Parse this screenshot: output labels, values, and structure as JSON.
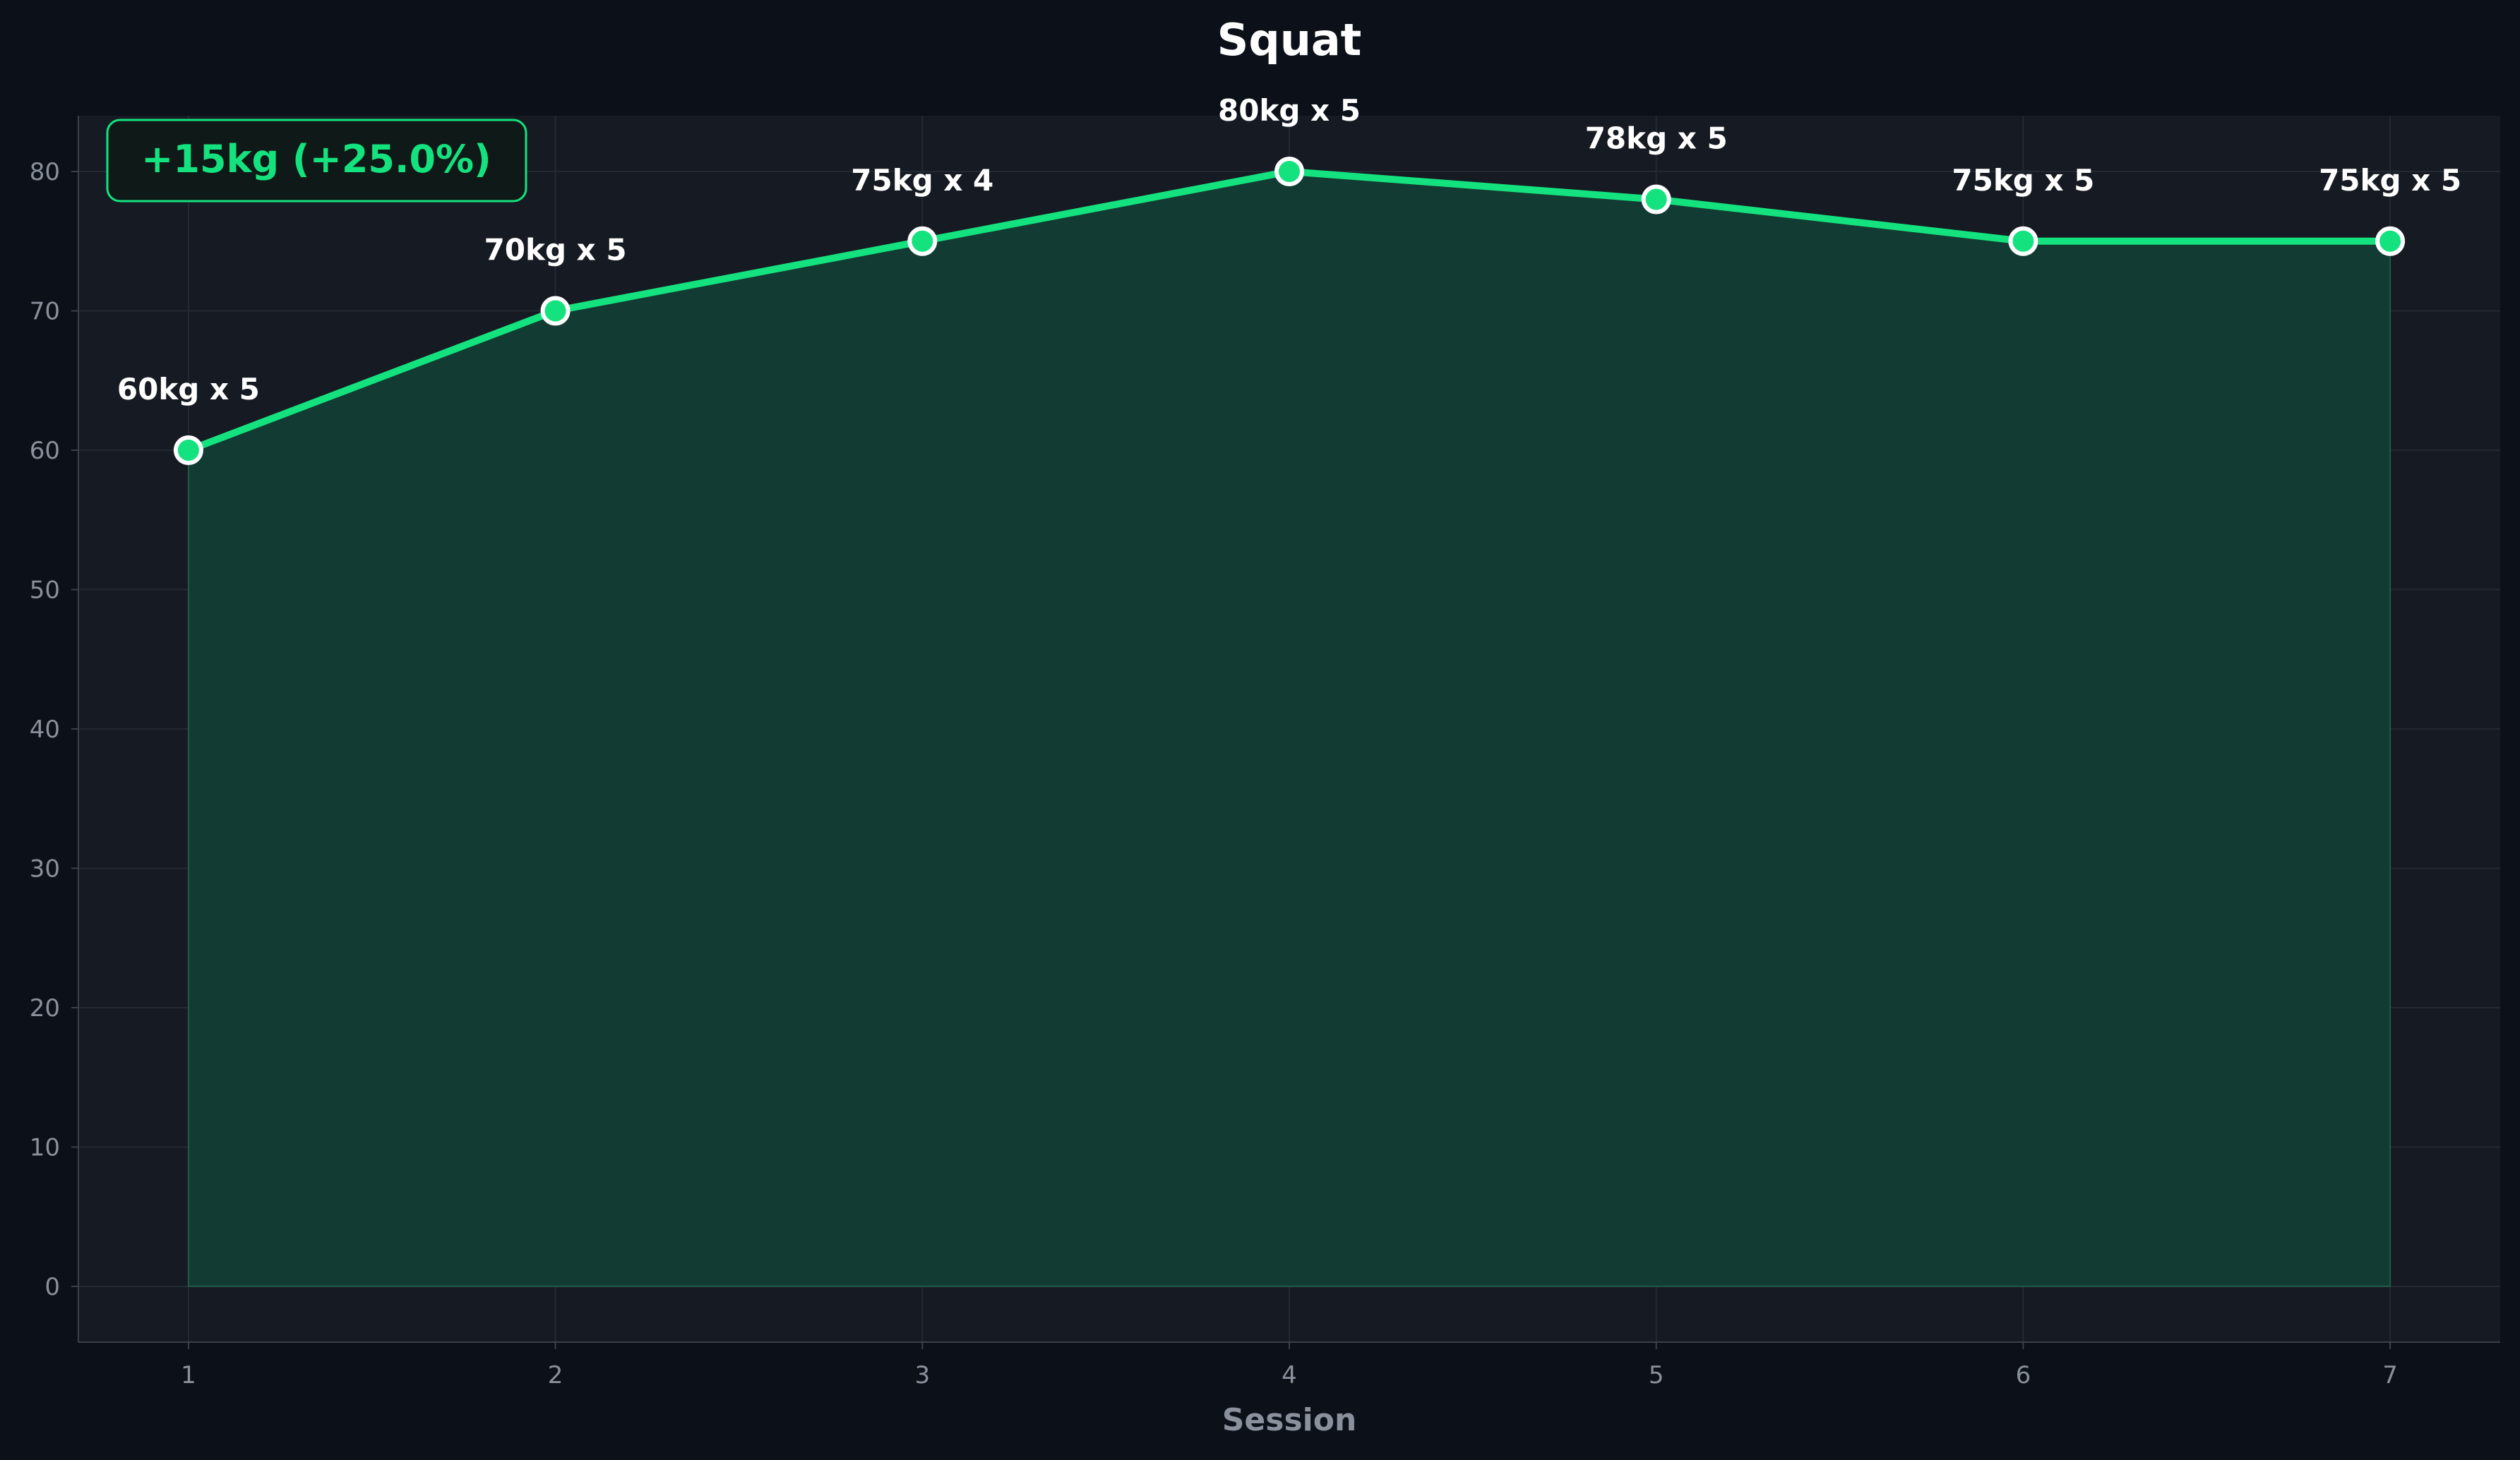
{
  "chart_data": {
    "type": "area",
    "title": "Squat",
    "xlabel": "Session",
    "ylabel": "",
    "x": [
      1,
      2,
      3,
      4,
      5,
      6,
      7
    ],
    "series": [
      {
        "values": [
          60,
          70,
          75,
          80,
          78,
          75,
          75
        ],
        "labels": [
          "60kg x 5",
          "70kg x 5",
          "75kg x 4",
          "80kg x 5",
          "78kg x 5",
          "75kg x 5",
          "75kg x 5"
        ]
      }
    ],
    "xticks": [
      "1",
      "2",
      "3",
      "4",
      "5",
      "6",
      "7"
    ],
    "yticks": [
      "0",
      "10",
      "20",
      "30",
      "40",
      "50",
      "60",
      "70",
      "80"
    ],
    "xlim": [
      0.7,
      7.3
    ],
    "ylim": [
      -4,
      84
    ],
    "grid": true,
    "annotation": "+15kg (+25.0%)",
    "colors": {
      "background": "#0c1018",
      "plot_background": "#161a22",
      "line": "#14e27e",
      "fill": "#123c33",
      "grid": "#232a33",
      "text": "#ffffff",
      "muted": "#8a919c"
    }
  }
}
